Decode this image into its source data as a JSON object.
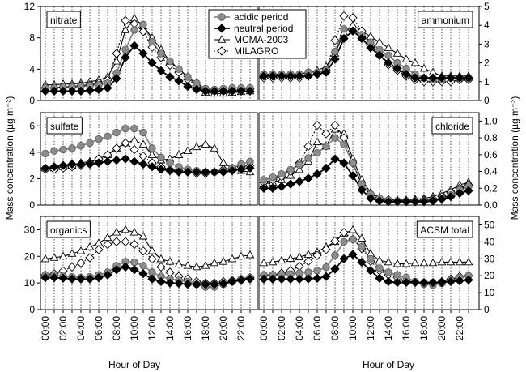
{
  "chart_data": {
    "type": "line",
    "xlabel": "Hour of Day",
    "ylabel_left": "Mass concentration (µg m⁻³)",
    "ylabel_right": "Mass concentration (µg m⁻³)",
    "x_tick_labels": [
      "00:00",
      "02:00",
      "04:00",
      "06:00",
      "08:00",
      "10:00",
      "12:00",
      "14:00",
      "16:00",
      "18:00",
      "20:00",
      "22:00"
    ],
    "hours": [
      0,
      1,
      2,
      3,
      4,
      5,
      6,
      7,
      8,
      9,
      10,
      11,
      12,
      13,
      14,
      15,
      16,
      17,
      18,
      19,
      20,
      21,
      22,
      23
    ],
    "legend": [
      {
        "name": "acidic period",
        "marker": "circle",
        "fill": "#8c8c8c"
      },
      {
        "name": "neutral period",
        "marker": "diamond",
        "fill": "#000000"
      },
      {
        "name": "MCMA-2003",
        "marker": "triangle",
        "fill": "#ffffff"
      },
      {
        "name": "MILAGRO",
        "marker": "diamond",
        "fill": "#ffffff"
      }
    ],
    "panels": [
      {
        "title": "nitrate",
        "side": "left",
        "ylim": [
          0,
          12
        ],
        "yticks": [
          0,
          4,
          8,
          12
        ],
        "series": [
          {
            "name": "acidic period",
            "values": [
              1.6,
              1.6,
              1.7,
              1.7,
              1.8,
              1.9,
              2.0,
              2.2,
              3.5,
              6.5,
              9.0,
              9.7,
              7.5,
              6.0,
              5.0,
              4.0,
              3.0,
              2.2,
              1.5,
              1.4,
              1.5,
              1.6,
              1.6,
              1.6
            ]
          },
          {
            "name": "neutral period",
            "values": [
              1.2,
              1.2,
              1.2,
              1.2,
              1.2,
              1.3,
              1.4,
              1.6,
              2.8,
              5.5,
              7.0,
              6.0,
              4.8,
              3.8,
              3.0,
              2.5,
              1.8,
              1.4,
              1.2,
              1.2,
              1.2,
              1.2,
              1.2,
              1.2
            ]
          },
          {
            "name": "MCMA-2003",
            "values": [
              2.0,
              2.0,
              2.1,
              2.1,
              2.2,
              2.4,
              2.6,
              3.0,
              5.0,
              9.0,
              10.5,
              9.5,
              8.0,
              6.5,
              5.0,
              4.0,
              3.0,
              2.0,
              1.0,
              0.9,
              0.9,
              1.0,
              1.1,
              1.2
            ]
          },
          {
            "name": "MILAGRO",
            "values": [
              1.6,
              1.6,
              1.7,
              1.8,
              1.9,
              2.0,
              2.2,
              2.6,
              6.0,
              10.2,
              9.8,
              8.8,
              6.8,
              5.5,
              4.5,
              3.6,
              2.7,
              1.9,
              1.3,
              1.2,
              1.2,
              1.3,
              1.4,
              1.5
            ]
          }
        ]
      },
      {
        "title": "ammonium",
        "side": "right",
        "ylim": [
          0,
          5
        ],
        "yticks": [
          0,
          1,
          2,
          3,
          4,
          5
        ],
        "series": [
          {
            "name": "acidic period",
            "values": [
              1.4,
              1.4,
              1.4,
              1.4,
              1.4,
              1.5,
              1.5,
              1.6,
              2.6,
              3.8,
              3.7,
              3.5,
              3.1,
              2.7,
              2.4,
              2.0,
              1.7,
              1.4,
              1.2,
              1.1,
              1.1,
              1.2,
              1.2,
              1.2
            ]
          },
          {
            "name": "neutral period",
            "values": [
              1.3,
              1.3,
              1.3,
              1.3,
              1.3,
              1.3,
              1.4,
              1.5,
              2.2,
              3.3,
              3.7,
              3.3,
              2.8,
              2.4,
              2.0,
              1.7,
              1.4,
              1.2,
              1.2,
              1.2,
              1.2,
              1.2,
              1.2,
              1.2
            ]
          },
          {
            "name": "MCMA-2003",
            "values": [
              1.4,
              1.4,
              1.4,
              1.4,
              1.4,
              1.5,
              1.6,
              1.8,
              2.5,
              3.6,
              4.0,
              3.7,
              3.4,
              3.1,
              2.8,
              2.5,
              2.2,
              2.0,
              1.7,
              1.5,
              1.3,
              1.3,
              1.3,
              1.3
            ]
          },
          {
            "name": "MILAGRO",
            "values": [
              1.2,
              1.2,
              1.2,
              1.2,
              1.2,
              1.3,
              1.4,
              1.6,
              3.2,
              4.5,
              4.4,
              3.7,
              2.9,
              2.4,
              1.9,
              1.6,
              1.3,
              1.1,
              1.0,
              1.0,
              1.0,
              1.0,
              1.1,
              1.1
            ]
          }
        ]
      },
      {
        "title": "sulfate",
        "side": "left",
        "ylim": [
          0,
          7
        ],
        "yticks": [
          0,
          2,
          4,
          6
        ],
        "series": [
          {
            "name": "acidic period",
            "values": [
              3.9,
              4.1,
              4.2,
              4.3,
              4.5,
              4.7,
              5.0,
              5.2,
              5.5,
              5.8,
              5.8,
              5.5,
              4.3,
              3.6,
              3.2,
              2.9,
              2.7,
              2.6,
              2.5,
              2.5,
              2.6,
              2.8,
              3.1,
              3.3
            ]
          },
          {
            "name": "neutral period",
            "values": [
              2.8,
              2.9,
              3.0,
              3.1,
              3.1,
              3.1,
              3.2,
              3.3,
              3.4,
              3.5,
              3.3,
              3.1,
              2.9,
              2.7,
              2.6,
              2.5,
              2.5,
              2.5,
              2.5,
              2.5,
              2.5,
              2.6,
              2.7,
              2.8
            ]
          },
          {
            "name": "MCMA-2003",
            "values": [
              2.8,
              2.8,
              2.9,
              3.0,
              3.2,
              3.3,
              3.5,
              3.8,
              4.3,
              4.7,
              4.9,
              4.6,
              3.8,
              3.4,
              3.5,
              3.8,
              4.1,
              4.4,
              4.6,
              4.3,
              3.2,
              2.8,
              2.6,
              2.5
            ]
          },
          {
            "name": "MILAGRO",
            "values": [
              2.7,
              2.7,
              2.8,
              2.9,
              3.0,
              3.2,
              3.5,
              3.8,
              4.3,
              4.7,
              4.2,
              3.7,
              3.2,
              2.9,
              2.7,
              2.6,
              2.5,
              2.4,
              2.4,
              2.5,
              2.7,
              2.8,
              2.9,
              3.0
            ]
          }
        ]
      },
      {
        "title": "chloride",
        "side": "right",
        "ylim": [
          0,
          1.1
        ],
        "yticks": [
          0,
          0.2,
          0.4,
          0.6,
          0.8,
          1.0
        ],
        "series": [
          {
            "name": "acidic period",
            "values": [
              0.3,
              0.33,
              0.37,
              0.42,
              0.48,
              0.56,
              0.62,
              0.7,
              0.8,
              0.72,
              0.5,
              0.25,
              0.13,
              0.08,
              0.06,
              0.05,
              0.05,
              0.05,
              0.05,
              0.06,
              0.08,
              0.12,
              0.18,
              0.22
            ]
          },
          {
            "name": "neutral period",
            "values": [
              0.2,
              0.2,
              0.22,
              0.25,
              0.28,
              0.32,
              0.37,
              0.44,
              0.55,
              0.5,
              0.35,
              0.18,
              0.08,
              0.05,
              0.04,
              0.04,
              0.04,
              0.04,
              0.04,
              0.05,
              0.07,
              0.1,
              0.14,
              0.17
            ]
          },
          {
            "name": "MCMA-2003",
            "values": [
              0.25,
              0.27,
              0.3,
              0.35,
              0.42,
              0.52,
              0.75,
              0.7,
              0.9,
              0.85,
              0.55,
              0.3,
              0.15,
              0.09,
              0.07,
              0.06,
              0.06,
              0.07,
              0.08,
              0.1,
              0.14,
              0.18,
              0.24,
              0.27
            ]
          },
          {
            "name": "MILAGRO",
            "values": [
              0.27,
              0.3,
              0.34,
              0.4,
              0.5,
              0.7,
              0.95,
              0.85,
              0.95,
              0.8,
              0.5,
              0.24,
              0.12,
              0.07,
              0.06,
              0.05,
              0.05,
              0.05,
              0.06,
              0.07,
              0.1,
              0.15,
              0.2,
              0.24
            ]
          }
        ]
      },
      {
        "title": "organics",
        "side": "left",
        "ylim": [
          0,
          35
        ],
        "yticks": [
          0,
          10,
          20,
          30
        ],
        "series": [
          {
            "name": "acidic period",
            "values": [
              13.0,
              13.0,
              12.5,
              12.3,
              12.0,
              12.3,
              13.0,
              14.0,
              16.5,
              18.0,
              17.8,
              16.5,
              14.0,
              12.5,
              11.5,
              11.0,
              10.5,
              9.5,
              8.5,
              8.5,
              9.5,
              10.5,
              11.5,
              12.0
            ]
          },
          {
            "name": "neutral period",
            "values": [
              12.0,
              12.0,
              11.8,
              11.5,
              11.5,
              11.5,
              12.0,
              13.0,
              15.0,
              16.0,
              15.0,
              13.5,
              11.5,
              10.5,
              10.0,
              9.8,
              9.5,
              9.5,
              9.5,
              9.5,
              9.8,
              10.5,
              11.0,
              11.5
            ]
          },
          {
            "name": "MCMA-2003",
            "values": [
              19.0,
              19.5,
              20.0,
              21.0,
              22.0,
              23.5,
              25.0,
              27.0,
              29.0,
              30.0,
              29.0,
              27.5,
              22.0,
              19.0,
              18.0,
              17.0,
              16.5,
              16.0,
              16.5,
              17.5,
              18.0,
              19.0,
              20.0,
              20.5
            ]
          },
          {
            "name": "MILAGRO",
            "values": [
              13.0,
              13.5,
              14.5,
              16.0,
              17.5,
              19.5,
              22.5,
              24.5,
              25.5,
              25.5,
              24.5,
              22.0,
              19.0,
              16.0,
              14.0,
              12.5,
              11.5,
              10.5,
              10.0,
              10.0,
              10.5,
              11.0,
              11.5,
              12.0
            ]
          }
        ]
      },
      {
        "title": "ACSM total",
        "side": "right",
        "ylim": [
          0,
          55
        ],
        "yticks": [
          0,
          10,
          20,
          30,
          40,
          50
        ],
        "series": [
          {
            "name": "acidic period",
            "values": [
              20.5,
              20.5,
              20.5,
              21.0,
              21.5,
              22.0,
              23.0,
              25.0,
              32.0,
              40.0,
              41.5,
              37.0,
              30.0,
              24.5,
              22.0,
              20.5,
              19.0,
              16.5,
              15.0,
              14.5,
              15.5,
              17.5,
              19.0,
              20.0
            ]
          },
          {
            "name": "neutral period",
            "values": [
              18.0,
              18.0,
              18.0,
              18.0,
              18.0,
              18.2,
              18.5,
              19.5,
              24.0,
              30.0,
              32.5,
              28.0,
              23.0,
              18.5,
              16.5,
              16.0,
              16.0,
              16.0,
              16.0,
              16.0,
              16.0,
              16.5,
              17.0,
              17.5
            ]
          },
          {
            "name": "MCMA-2003",
            "values": [
              27.5,
              28.0,
              29.0,
              30.0,
              31.0,
              32.5,
              34.0,
              37.0,
              40.0,
              45.0,
              47.0,
              42.0,
              33.0,
              29.0,
              28.0,
              27.0,
              27.0,
              27.5,
              27.5,
              27.5,
              28.0,
              28.0,
              28.0,
              28.0
            ]
          },
          {
            "name": "MILAGRO",
            "values": [
              20.0,
              20.5,
              21.5,
              23.0,
              25.5,
              28.5,
              32.0,
              35.5,
              40.5,
              45.5,
              41.5,
              36.0,
              28.5,
              23.0,
              20.5,
              19.0,
              17.0,
              16.0,
              15.5,
              15.5,
              16.5,
              18.0,
              19.5,
              20.0
            ]
          }
        ]
      }
    ]
  }
}
